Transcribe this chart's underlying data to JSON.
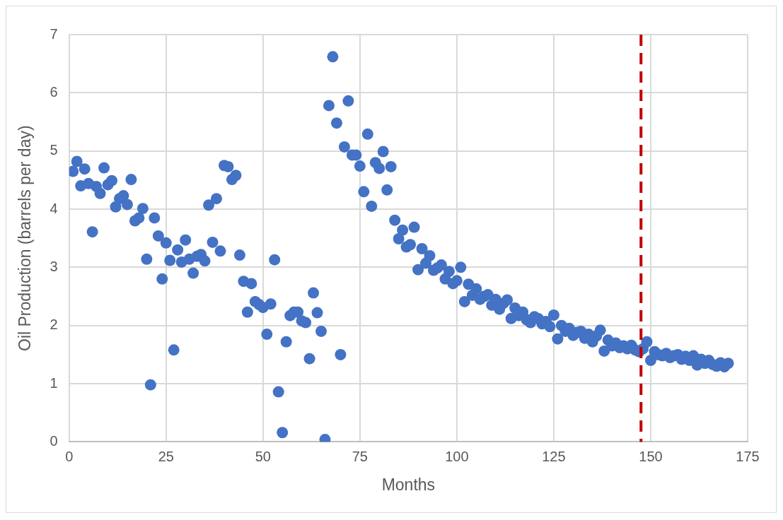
{
  "chart_data": {
    "type": "scatter",
    "xlabel": "Months",
    "ylabel": "Oil Production (barrels per day)",
    "xlim": [
      0,
      175
    ],
    "xticks": [
      0,
      25,
      50,
      75,
      100,
      125,
      150,
      175
    ],
    "ylim": [
      0,
      7
    ],
    "yticks": [
      0,
      1,
      2,
      3,
      4,
      5,
      6,
      7
    ],
    "grid": true,
    "legend": false,
    "marker": "circle",
    "ref_lines": [
      {
        "axis": "x",
        "value": 147.5,
        "color": "#c00000",
        "line_style": "dashed"
      }
    ],
    "series": [
      {
        "color": "#4472c4",
        "x": [
          1,
          2,
          3,
          4,
          5,
          6,
          7,
          8,
          9,
          10,
          11,
          12,
          13,
          14,
          15,
          16,
          17,
          18,
          19,
          20,
          21,
          22,
          23,
          24,
          25,
          26,
          27,
          28,
          29,
          30,
          31,
          32,
          33,
          34,
          35,
          36,
          37,
          38,
          39,
          40,
          41,
          42,
          43,
          44,
          45,
          46,
          47,
          48,
          49,
          50,
          51,
          52,
          53,
          54,
          55,
          56,
          57,
          58,
          59,
          60,
          61,
          62,
          63,
          64,
          65,
          66,
          67,
          68,
          69,
          70,
          71,
          72,
          73,
          74,
          75,
          76,
          77,
          78,
          79,
          80,
          81,
          82,
          83,
          84,
          85,
          86,
          87,
          88,
          89,
          90,
          91,
          92,
          93,
          94,
          95,
          96,
          97,
          98,
          99,
          100,
          101,
          102,
          103,
          104,
          105,
          106,
          107,
          108,
          109,
          110,
          111,
          112,
          113,
          114,
          115,
          116,
          117,
          118,
          119,
          120,
          121,
          122,
          123,
          124,
          125,
          126,
          127,
          128,
          129,
          130,
          131,
          132,
          133,
          134,
          135,
          136,
          137,
          138,
          139,
          140,
          141,
          142,
          143,
          144,
          145,
          146,
          147,
          148,
          149,
          150,
          151,
          152,
          153,
          154,
          155,
          156,
          157,
          158,
          159,
          160,
          161,
          162,
          163,
          164,
          165,
          166,
          167,
          168,
          169,
          170
        ],
        "values": [
          4.65,
          4.82,
          4.4,
          4.69,
          4.44,
          3.61,
          4.39,
          4.27,
          4.71,
          4.42,
          4.49,
          4.04,
          4.18,
          4.23,
          4.08,
          4.51,
          3.8,
          3.85,
          4.01,
          3.14,
          0.98,
          3.85,
          3.54,
          2.8,
          3.42,
          3.12,
          1.58,
          3.3,
          3.09,
          3.47,
          3.14,
          2.9,
          3.19,
          3.22,
          3.11,
          4.07,
          3.43,
          4.18,
          3.28,
          4.75,
          4.73,
          4.51,
          4.58,
          3.21,
          2.76,
          2.23,
          2.72,
          2.41,
          2.36,
          2.31,
          1.85,
          2.37,
          3.13,
          0.86,
          0.16,
          1.72,
          2.17,
          2.23,
          2.23,
          2.08,
          2.05,
          1.43,
          2.56,
          2.22,
          1.9,
          0.04,
          5.78,
          6.62,
          5.48,
          1.5,
          5.07,
          5.86,
          4.93,
          4.93,
          4.74,
          4.3,
          5.29,
          4.05,
          4.8,
          4.7,
          4.99,
          4.33,
          4.73,
          3.81,
          3.49,
          3.64,
          3.35,
          3.39,
          3.69,
          2.96,
          3.32,
          3.07,
          3.2,
          2.95,
          2.99,
          3.04,
          2.8,
          2.93,
          2.72,
          2.77,
          3,
          2.41,
          2.71,
          2.52,
          2.63,
          2.45,
          2.5,
          2.53,
          2.35,
          2.45,
          2.28,
          2.38,
          2.44,
          2.12,
          2.3,
          2.17,
          2.23,
          2.1,
          2.05,
          2.15,
          2.12,
          2.03,
          2.07,
          1.98,
          2.18,
          1.77,
          2,
          1.9,
          1.95,
          1.83,
          1.88,
          1.9,
          1.78,
          1.85,
          1.72,
          1.82,
          1.92,
          1.56,
          1.75,
          1.65,
          1.7,
          1.62,
          1.65,
          1.6,
          1.66,
          1.58,
          1.55,
          1.6,
          1.72,
          1.4,
          1.55,
          1.5,
          1.48,
          1.52,
          1.45,
          1.48,
          1.5,
          1.42,
          1.47,
          1.4,
          1.48,
          1.32,
          1.42,
          1.35,
          1.4,
          1.33,
          1.3,
          1.36,
          1.29,
          1.35
        ]
      }
    ]
  }
}
